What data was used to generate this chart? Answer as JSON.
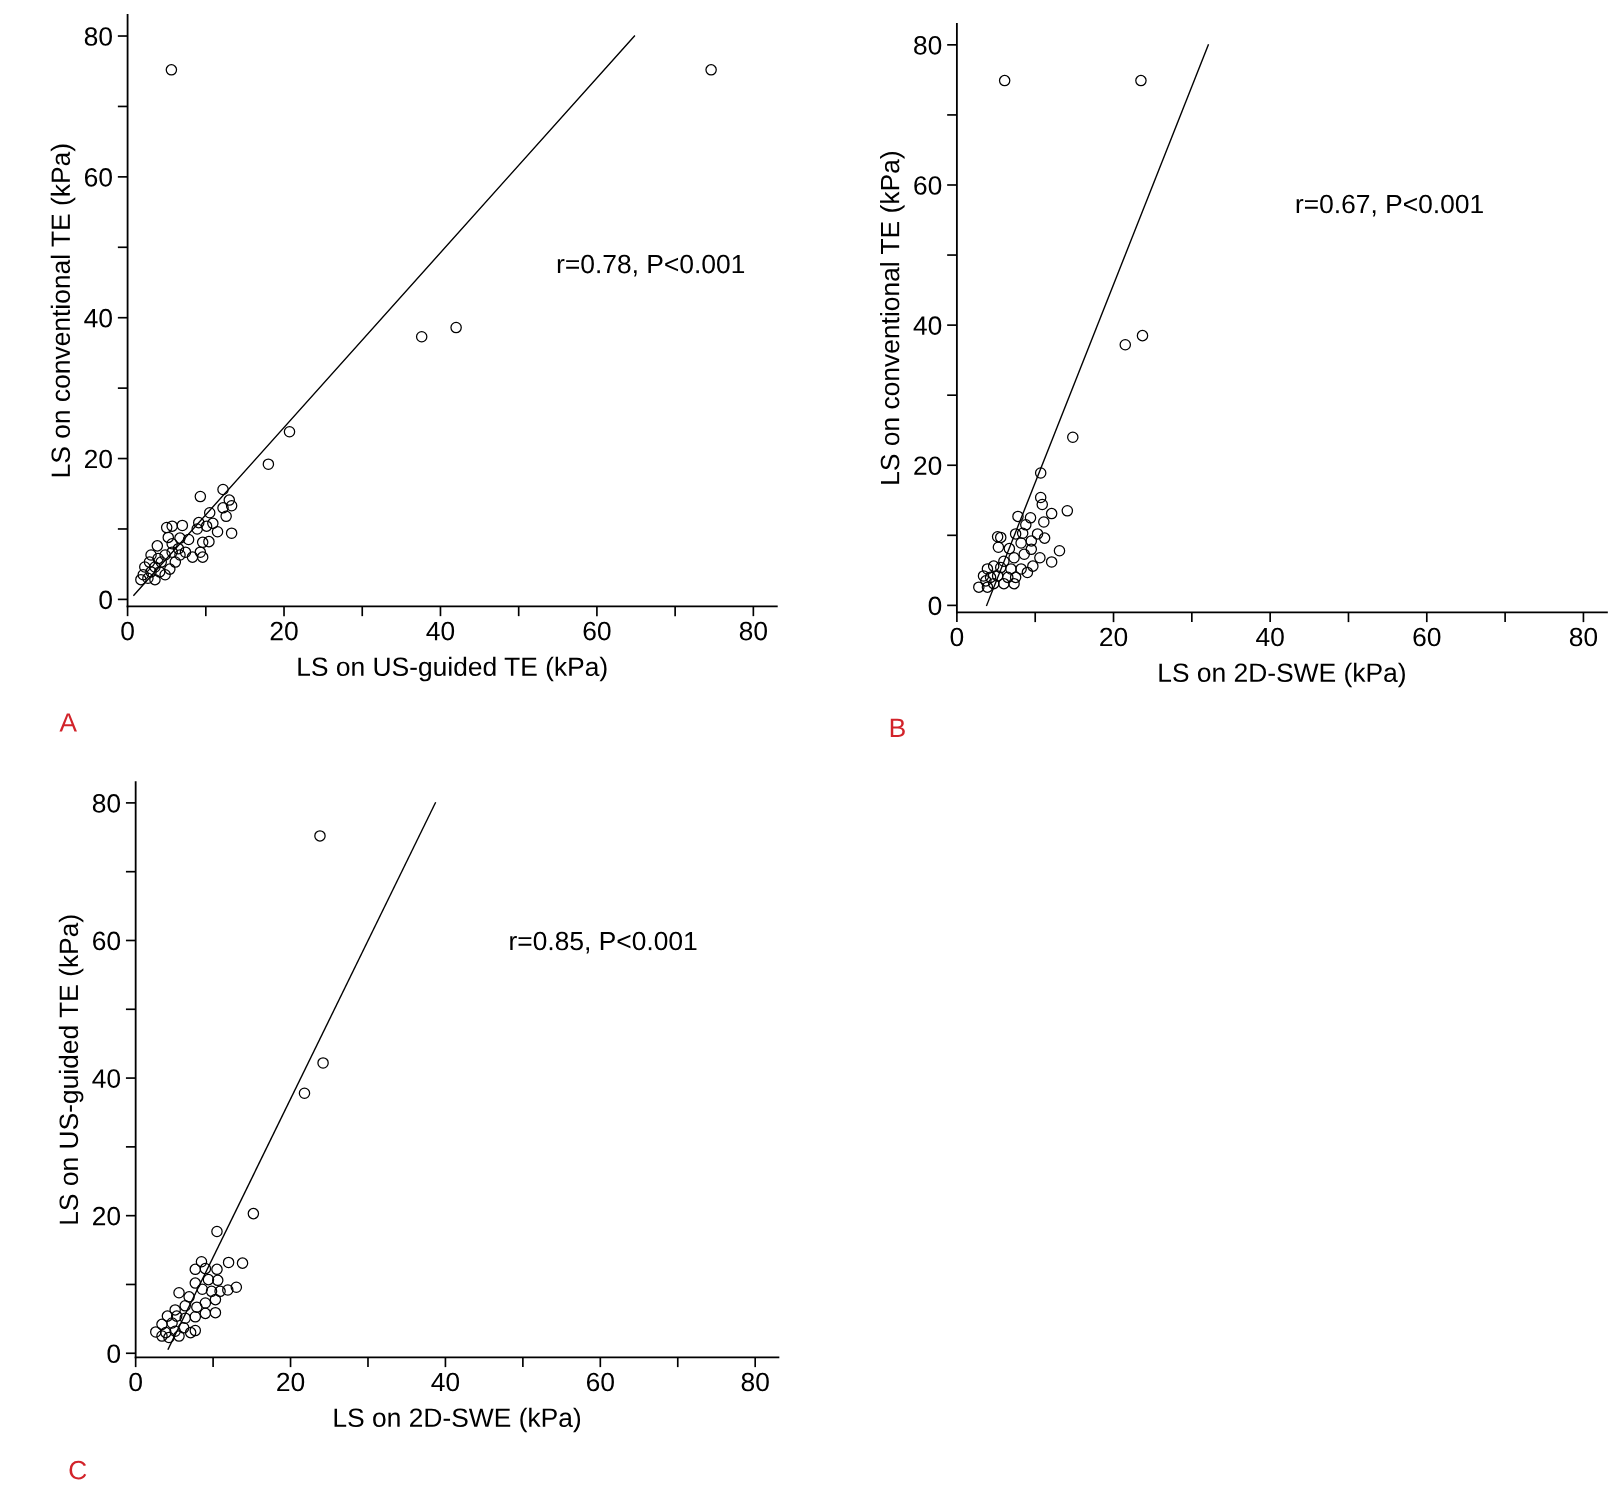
{
  "chart_data": [
    {
      "type": "scatter",
      "xlabel": "LS on US-guided TE (kPa)",
      "ylabel": "LS on conventional TE (kPa)",
      "xlim": [
        0,
        83
      ],
      "ylim": [
        -1,
        83
      ],
      "xticks": [
        0,
        {
          "value": 10,
          "label": null
        },
        20,
        {
          "value": 30,
          "label": null
        },
        40,
        {
          "value": 50,
          "label": null
        },
        60,
        {
          "value": 70,
          "label": null
        },
        80
      ],
      "yticks": [
        0,
        {
          "value": 10,
          "label": null
        },
        20,
        {
          "value": 30,
          "label": null
        },
        40,
        {
          "value": 50,
          "label": null
        },
        60,
        {
          "value": 70,
          "label": null
        },
        80
      ],
      "grid": false,
      "legend": false,
      "annotations": [
        "r=0.78, P<0.001",
        "A"
      ],
      "series": [
        {
          "marker": "circle",
          "color": "#000000",
          "x": [
            5.6,
            74.6,
            37.6,
            42,
            20.7,
            18.0,
            12.2,
            9.3,
            13.0,
            13.3,
            12.2,
            12.6,
            10.5,
            10.9,
            11.5,
            13.3,
            9.1,
            10.1,
            8.9,
            7.0,
            5.7,
            5.0,
            10.4,
            9.6,
            9.3,
            9.6,
            8.3,
            7.8,
            6.7,
            5.2,
            3.8,
            6.5,
            5.7,
            4.8,
            6.7,
            3.9,
            3.0,
            5.4,
            4.8,
            2.8,
            2.2,
            3.5,
            2.0,
            2.6,
            3.5,
            1.7,
            4.1,
            3.0,
            4.3,
            6.1,
            5.7,
            7.4
          ],
          "values": [
            75.2,
            75.2,
            37.3,
            38.6,
            23.8,
            19.2,
            15.6,
            14.6,
            14.1,
            13.3,
            13.0,
            11.8,
            12.3,
            10.8,
            9.6,
            9.4,
            10.9,
            10.4,
            10.0,
            10.5,
            10.4,
            10.2,
            8.2,
            8.1,
            6.7,
            6.0,
            6.0,
            8.5,
            8.7,
            8.8,
            7.6,
            7.2,
            6.7,
            6.3,
            6.3,
            5.8,
            6.3,
            4.3,
            3.5,
            5.3,
            4.6,
            4.6,
            3.5,
            3.0,
            2.8,
            2.8,
            3.9,
            3.9,
            5.3,
            5.3,
            7.9,
            6.7
          ]
        },
        {
          "type": "line",
          "marker": "none",
          "line_style": "solid",
          "color": "#000000",
          "x": [
            0.8,
            64.8
          ],
          "values": [
            0.6,
            80
          ]
        }
      ]
    },
    {
      "type": "scatter",
      "xlabel": "LS on 2D-SWE (kPa)",
      "ylabel": "LS on US-guided TE (kPa)",
      "xlim": [
        0,
        83
      ],
      "ylim": [
        -0.6,
        83
      ],
      "xticks": [
        0,
        {
          "value": 10,
          "label": null
        },
        20,
        {
          "value": 30,
          "label": null
        },
        40,
        {
          "value": 50,
          "label": null
        },
        60,
        {
          "value": 70,
          "label": null
        },
        80
      ],
      "yticks": [
        0,
        {
          "value": 10,
          "label": null
        },
        20,
        {
          "value": 30,
          "label": null
        },
        40,
        {
          "value": 50,
          "label": null
        },
        60,
        {
          "value": 70,
          "label": null
        },
        80
      ],
      "grid": false,
      "legend": false,
      "annotations": [
        "r=0.85, P<0.001",
        "C"
      ],
      "series": [
        {
          "marker": "circle",
          "color": "#000000",
          "x": [
            23.8,
            24.2,
            21.8,
            15.2,
            10.5,
            8.5,
            12.0,
            13.8,
            7.7,
            9.0,
            10.5,
            9.4,
            10.6,
            7.7,
            13.0,
            11.9,
            9.8,
            10.9,
            8.6,
            5.6,
            6.9,
            10.3,
            9.0,
            7.9,
            6.4,
            5.1,
            10.3,
            9.0,
            7.7,
            6.4,
            4.1,
            4.7,
            3.4,
            2.6,
            3.9,
            5.1,
            6.2,
            7.7,
            4.3,
            3.4,
            5.6,
            7.1,
            5.3
          ],
          "values": [
            75.2,
            42.2,
            37.8,
            20.3,
            17.7,
            13.3,
            13.2,
            13.1,
            12.2,
            12.3,
            12.2,
            10.7,
            10.6,
            10.2,
            9.6,
            9.2,
            9.0,
            9.0,
            9.3,
            8.8,
            8.2,
            7.8,
            7.3,
            6.7,
            6.9,
            6.3,
            5.9,
            5.8,
            5.3,
            5.1,
            5.4,
            4.4,
            4.2,
            3.1,
            3.0,
            3.2,
            3.7,
            3.3,
            2.3,
            2.5,
            2.5,
            3.0,
            5.4
          ]
        },
        {
          "type": "line",
          "marker": "none",
          "line_style": "solid",
          "color": "#000000",
          "x": [
            4.2,
            38.7
          ],
          "values": [
            0.6,
            80
          ]
        }
      ]
    },
    {
      "type": "scatter",
      "xlabel": "LS on 2D-SWE (kPa)",
      "ylabel": "LS on conventional TE (kPa)",
      "xlim": [
        0,
        83
      ],
      "ylim": [
        -1,
        83
      ],
      "xticks": [
        0,
        {
          "value": 10,
          "label": null
        },
        20,
        {
          "value": 30,
          "label": null
        },
        40,
        {
          "value": 50,
          "label": null
        },
        60,
        {
          "value": 70,
          "label": null
        },
        80
      ],
      "yticks": [
        0,
        {
          "value": 10,
          "label": null
        },
        20,
        {
          "value": 30,
          "label": null
        },
        40,
        {
          "value": 50,
          "label": null
        },
        60,
        {
          "value": 70,
          "label": null
        },
        80
      ],
      "grid": false,
      "legend": false,
      "annotations": [
        "r=0.67, P<0.001",
        "B"
      ],
      "series": [
        {
          "marker": "circle",
          "color": "#000000",
          "x": [
            6.1,
            23.5,
            21.5,
            23.7,
            14.8,
            10.7,
            10.7,
            10.9,
            12.1,
            14.1,
            9.4,
            7.8,
            11.1,
            8.8,
            7.5,
            5.6,
            5.2,
            8.4,
            10.3,
            11.2,
            9.5,
            8.2,
            6.7,
            5.3,
            9.5,
            13.1,
            10.6,
            12.1,
            8.6,
            7.3,
            6.0,
            9.7,
            8.2,
            4.7,
            3.9,
            5.6,
            6.9,
            3.4,
            4.3,
            5.2,
            2.8,
            3.9,
            4.7,
            6.0,
            7.3,
            3.7,
            6.5,
            7.5,
            9.0
          ],
          "values": [
            74.9,
            74.9,
            37.2,
            38.5,
            24.0,
            18.9,
            15.4,
            14.4,
            13.1,
            13.5,
            12.5,
            12.7,
            11.9,
            11.5,
            10.2,
            9.7,
            9.8,
            10.3,
            10.2,
            9.6,
            9.2,
            8.9,
            8.1,
            8.3,
            8.0,
            7.8,
            6.8,
            6.2,
            7.3,
            6.8,
            6.3,
            5.6,
            5.2,
            5.6,
            5.2,
            5.4,
            5.2,
            4.2,
            4.0,
            4.2,
            2.6,
            2.6,
            3.1,
            3.1,
            3.1,
            3.5,
            4.0,
            4.0,
            4.7
          ]
        },
        {
          "type": "line",
          "marker": "none",
          "line_style": "solid",
          "color": "#000000",
          "x": [
            3.8,
            32.1
          ],
          "values": [
            0,
            80
          ]
        }
      ]
    }
  ]
}
